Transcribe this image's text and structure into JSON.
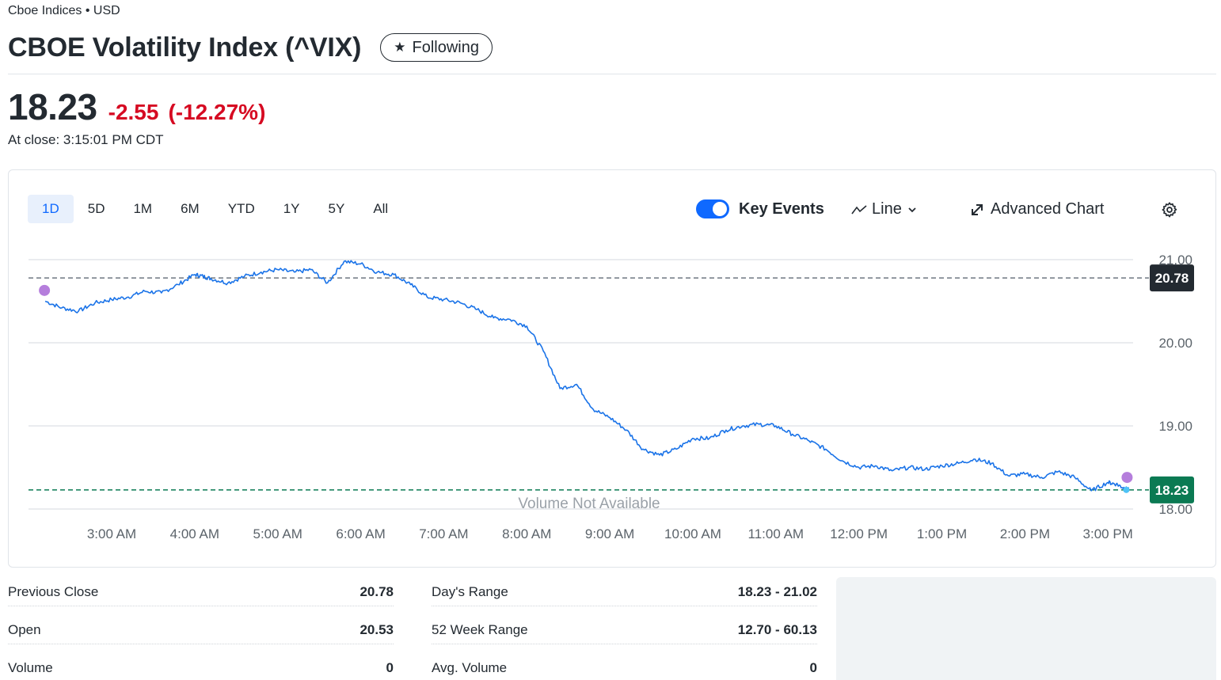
{
  "header": {
    "exchange": "Cboe Indices • USD",
    "title": "CBOE Volatility Index (^VIX)",
    "follow_label": "Following"
  },
  "quote": {
    "price": "18.23",
    "change": "-2.55",
    "change_pct": "(-12.27%)",
    "close_time": "At close: 3:15:01 PM CDT"
  },
  "chart_controls": {
    "ranges": [
      "1D",
      "5D",
      "1M",
      "6M",
      "YTD",
      "1Y",
      "5Y",
      "All"
    ],
    "active_range": "1D",
    "key_events_label": "Key Events",
    "key_events_on": true,
    "chart_type_label": "Line",
    "advanced_label": "Advanced Chart"
  },
  "chart_data": {
    "type": "line",
    "x_labels": [
      "3:00 AM",
      "4:00 AM",
      "5:00 AM",
      "6:00 AM",
      "7:00 AM",
      "8:00 AM",
      "9:00 AM",
      "10:00 AM",
      "11:00 AM",
      "12:00 PM",
      "1:00 PM",
      "2:00 PM",
      "3:00 PM"
    ],
    "y_ticks": [
      "21.00",
      "20.00",
      "19.00",
      "18.00"
    ],
    "ylim": [
      18.0,
      21.0
    ],
    "previous_close": 20.78,
    "previous_close_label": "20.78",
    "last": 18.23,
    "last_label": "18.23",
    "volume_note": "Volume Not Available",
    "series": [
      {
        "color": "#1a73e8",
        "x_hours": [
          2.2,
          2.4,
          2.6,
          2.8,
          3.0,
          3.2,
          3.4,
          3.6,
          3.8,
          4.0,
          4.1,
          4.2,
          4.4,
          4.6,
          4.8,
          5.0,
          5.2,
          5.4,
          5.6,
          5.8,
          6.0,
          6.2,
          6.4,
          6.6,
          6.8,
          7.0,
          7.2,
          7.4,
          7.6,
          7.8,
          8.0,
          8.2,
          8.4,
          8.6,
          8.8,
          9.0,
          9.2,
          9.4,
          9.6,
          9.8,
          10.0,
          10.2,
          10.4,
          10.6,
          10.8,
          11.0,
          11.2,
          11.4,
          11.6,
          11.8,
          12.0,
          12.2,
          12.4,
          12.6,
          12.8,
          13.0,
          13.2,
          13.4,
          13.6,
          13.8,
          14.0,
          14.2,
          14.4,
          14.6,
          14.8,
          15.0,
          15.1,
          15.2,
          15.25
        ],
        "values": [
          20.5,
          20.42,
          20.38,
          20.48,
          20.52,
          20.55,
          20.62,
          20.6,
          20.7,
          20.82,
          20.8,
          20.77,
          20.72,
          20.8,
          20.85,
          20.88,
          20.85,
          20.88,
          20.72,
          20.98,
          20.95,
          20.85,
          20.82,
          20.7,
          20.55,
          20.52,
          20.48,
          20.4,
          20.3,
          20.28,
          20.2,
          19.9,
          19.45,
          19.5,
          19.2,
          19.1,
          18.95,
          18.72,
          18.65,
          18.72,
          18.85,
          18.85,
          18.95,
          19.0,
          19.02,
          19.0,
          18.9,
          18.82,
          18.72,
          18.58,
          18.5,
          18.52,
          18.46,
          18.5,
          18.48,
          18.52,
          18.55,
          18.6,
          18.55,
          18.4,
          18.42,
          18.38,
          18.45,
          18.38,
          18.22,
          18.32,
          18.3,
          18.25,
          18.23
        ]
      }
    ]
  },
  "stats": {
    "left": [
      {
        "label": "Previous Close",
        "value": "20.78"
      },
      {
        "label": "Open",
        "value": "20.53"
      },
      {
        "label": "Volume",
        "value": "0"
      }
    ],
    "right": [
      {
        "label": "Day's Range",
        "value": "18.23 - 21.02"
      },
      {
        "label": "52 Week Range",
        "value": "12.70 - 60.13"
      },
      {
        "label": "Avg. Volume",
        "value": "0"
      }
    ]
  },
  "colors": {
    "negative": "#d60a22",
    "accent": "#0f69ff",
    "line": "#1a73e8",
    "prev_close_tag": "#232a31",
    "last_tag": "#0b7a53",
    "event_marker": "#b57edc"
  }
}
